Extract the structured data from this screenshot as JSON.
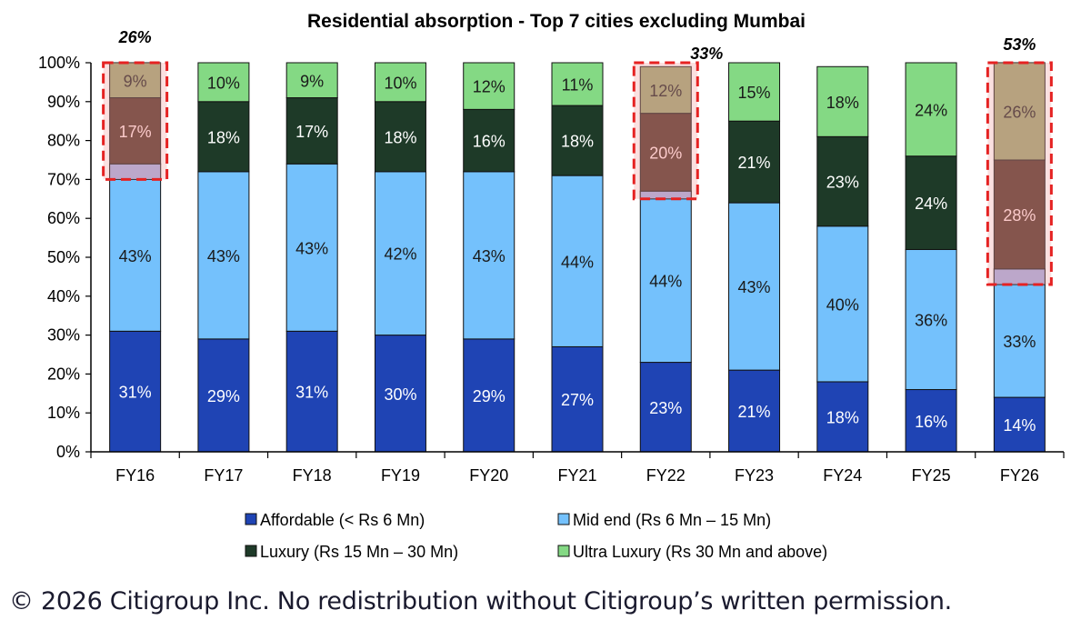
{
  "chart_data": {
    "type": "bar",
    "stacked": true,
    "title": "Residential absorption - Top 7 cities excluding Mumbai",
    "xlabel": "",
    "ylabel": "",
    "ylim": [
      0,
      100
    ],
    "y_ticks": [
      "0%",
      "10%",
      "20%",
      "30%",
      "40%",
      "50%",
      "60%",
      "70%",
      "80%",
      "90%",
      "100%"
    ],
    "categories": [
      "FY16",
      "FY17",
      "FY18",
      "FY19",
      "FY20",
      "FY21",
      "FY22",
      "FY23",
      "FY24",
      "FY25",
      "FY26"
    ],
    "series": [
      {
        "name": "Affordable (< Rs 6 Mn)",
        "color": "#1f44b4",
        "label_color": "#ffffff",
        "values": [
          31,
          29,
          31,
          30,
          29,
          27,
          23,
          21,
          18,
          16,
          14
        ],
        "labels": [
          "31%",
          "29%",
          "31%",
          "30%",
          "29%",
          "27%",
          "23%",
          "21%",
          "18%",
          "16%",
          "14%"
        ]
      },
      {
        "name": "Mid end (Rs 6 Mn – 15 Mn)",
        "color": "#74c1fc",
        "label_color": "#1a1a1a",
        "values": [
          43,
          43,
          43,
          42,
          43,
          44,
          44,
          43,
          40,
          36,
          33
        ],
        "labels": [
          "43%",
          "43%",
          "43%",
          "42%",
          "43%",
          "44%",
          "44%",
          "43%",
          "40%",
          "36%",
          "33%"
        ]
      },
      {
        "name": "Luxury (Rs 15 Mn – 30 Mn)",
        "color": "#1e3a28",
        "label_color": "#ffffff",
        "values": [
          17,
          18,
          17,
          18,
          16,
          18,
          20,
          21,
          23,
          24,
          28
        ],
        "labels": [
          "17%",
          "18%",
          "17%",
          "18%",
          "16%",
          "18%",
          "20%",
          "21%",
          "23%",
          "24%",
          "28%"
        ]
      },
      {
        "name": "Ultra Luxury (Rs 30 Mn and above)",
        "color": "#84d984",
        "label_color": "#1a1a1a",
        "values": [
          9,
          10,
          9,
          10,
          12,
          11,
          12,
          15,
          18,
          24,
          26
        ],
        "labels": [
          "9%",
          "10%",
          "9%",
          "10%",
          "12%",
          "11%",
          "12%",
          "15%",
          "18%",
          "24%",
          "26%"
        ]
      }
    ],
    "highlights": [
      {
        "category": "FY16",
        "from": 70,
        "to": 100,
        "label": "26%"
      },
      {
        "category": "FY22",
        "from": 65,
        "to": 100,
        "label": "33%"
      },
      {
        "category": "FY26",
        "from": 43,
        "to": 100,
        "label": "53%"
      }
    ],
    "legend_position": "bottom",
    "grid": false
  },
  "footer": "© 2026 Citigroup Inc. No redistribution without Citigroup’s written permission."
}
